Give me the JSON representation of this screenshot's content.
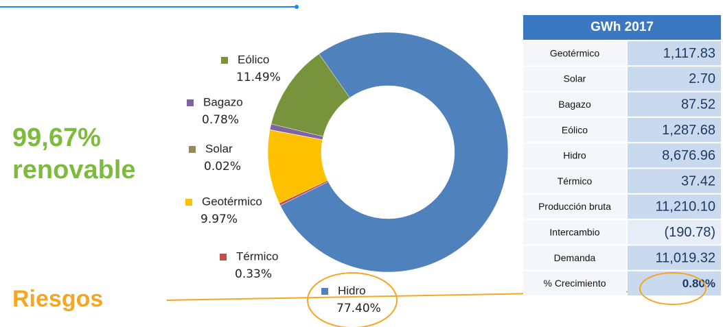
{
  "headline": {
    "line1": "99,67%",
    "line2": "renovable",
    "risks": "Riesgos"
  },
  "chart_data": {
    "type": "donut",
    "categories": [
      "Hidro",
      "Térmico",
      "Geotérmico",
      "Solar",
      "Bagazo",
      "Eólico"
    ],
    "values": [
      77.4,
      0.33,
      9.97,
      0.02,
      0.78,
      11.49
    ],
    "value_labels": [
      "77.40%",
      "0.33%",
      "9.97%",
      "0.02%",
      "0.78%",
      "11.49%"
    ],
    "colors": [
      "#4f81bd",
      "#c0504d",
      "#ffc000",
      "#948a54",
      "#8064a2",
      "#77933c"
    ]
  },
  "table": {
    "header": "GWh 2017",
    "rows": [
      [
        "Geotérmico",
        "1,117.83"
      ],
      [
        "Solar",
        "2.70"
      ],
      [
        "Bagazo",
        "87.52"
      ],
      [
        "Eólico",
        "1,287.68"
      ],
      [
        "Hidro",
        "8,676.96"
      ],
      [
        "Térmico",
        "37.42"
      ],
      [
        "Producción bruta",
        "11,210.10"
      ],
      [
        "Intercambio",
        "(190.78)"
      ],
      [
        "Demanda",
        "11,019.32"
      ],
      [
        "% Crecimiento",
        "0.80%"
      ]
    ]
  }
}
